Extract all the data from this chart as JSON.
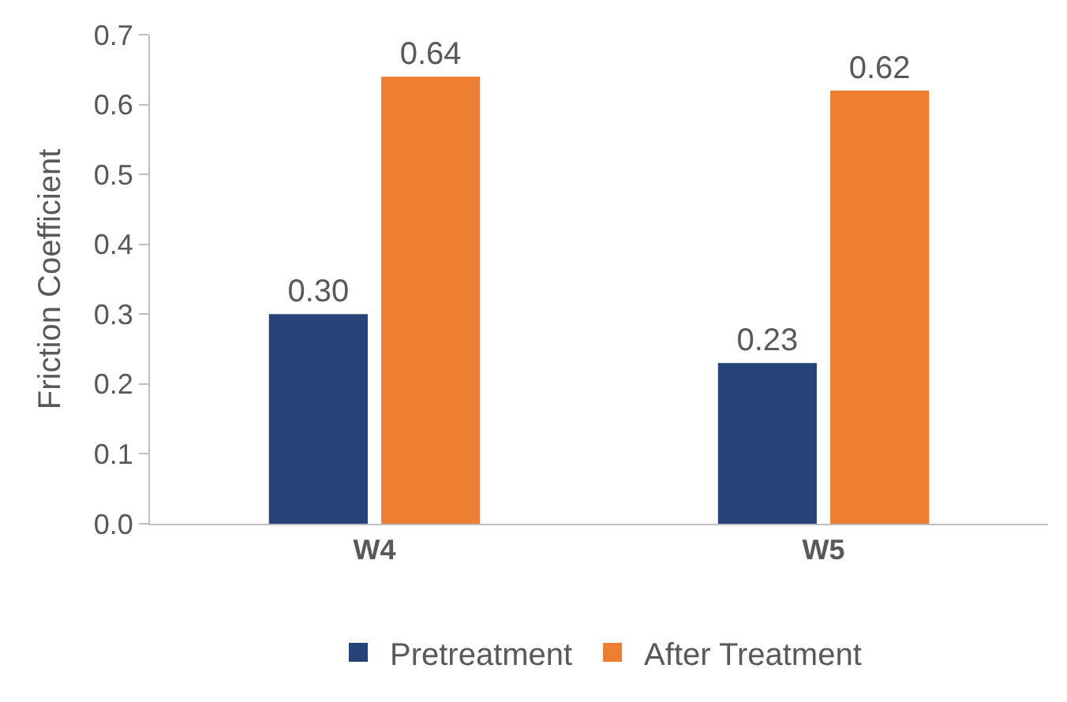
{
  "chart_data": {
    "type": "bar",
    "ylabel": "Friction Coefficient",
    "categories": [
      "W4",
      "W5"
    ],
    "series": [
      {
        "name": "Pretreatment",
        "color": "#264478",
        "values": [
          0.3,
          0.23
        ],
        "value_labels": [
          "0.30",
          "0.23"
        ]
      },
      {
        "name": "After Treatment",
        "color": "#ed7d31",
        "values": [
          0.64,
          0.62
        ],
        "value_labels": [
          "0.64",
          "0.62"
        ]
      }
    ],
    "ylim": [
      0,
      0.7
    ],
    "yticks": [
      {
        "value": 0,
        "label": "0.0"
      },
      0.1,
      0.2,
      0.3,
      0.4,
      0.5,
      0.6,
      0.7
    ],
    "legend": "bottom"
  }
}
